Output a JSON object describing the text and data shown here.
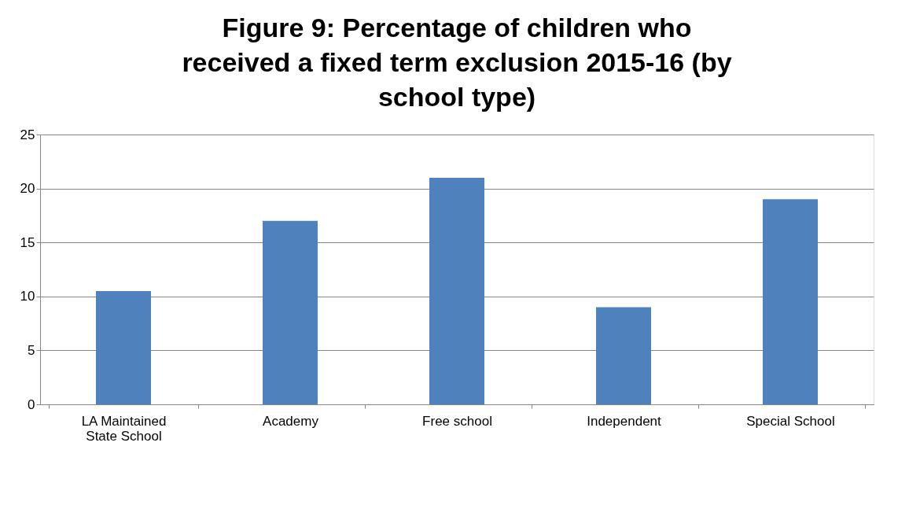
{
  "chart_data": {
    "type": "bar",
    "title": "Figure 9: Percentage of children who received a fixed term exclusion 2015-16 (by school type)",
    "categories": [
      "LA Maintained State School",
      "Academy",
      "Free school",
      "Independent",
      "Special School"
    ],
    "values": [
      10.5,
      17,
      21,
      9,
      19
    ],
    "color": "#4f81bd",
    "ylim": [
      0,
      25
    ],
    "yticks": [
      0,
      5,
      10,
      15,
      20,
      25
    ],
    "grid": "y"
  }
}
